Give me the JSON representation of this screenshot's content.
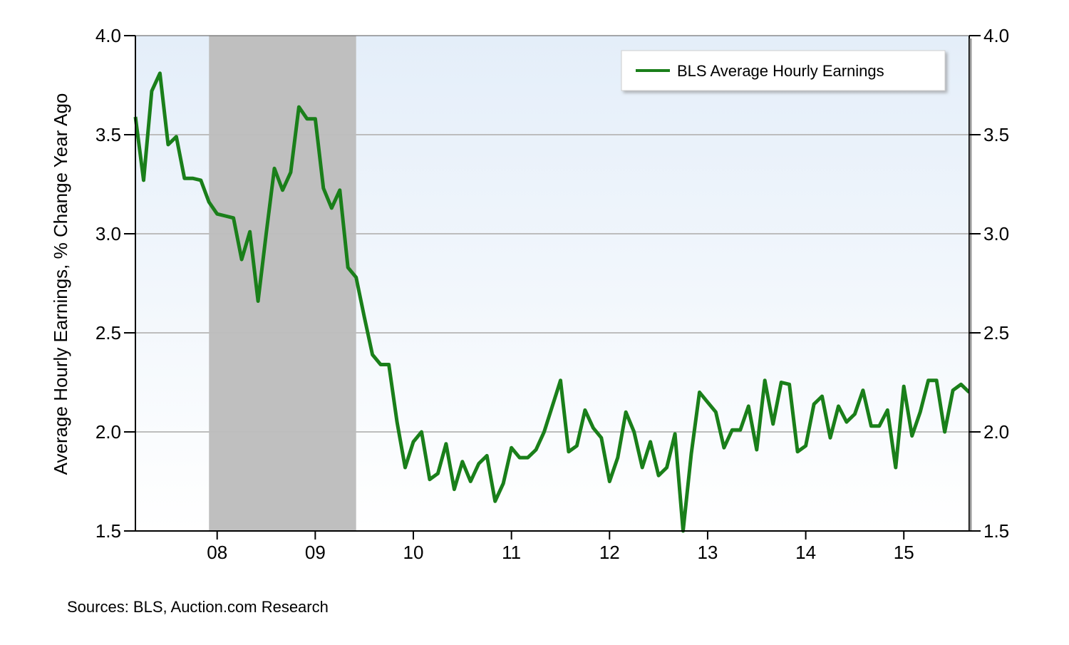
{
  "source_note": "Sources: BLS, Auction.com Research",
  "chart_data": {
    "type": "line",
    "title": "",
    "xlabel": "",
    "ylabel": "Average Hourly Earnings, % Change Year Ago",
    "ylim": [
      1.5,
      4.0
    ],
    "y_ticks": [
      1.5,
      2.0,
      2.5,
      3.0,
      3.5,
      4.0
    ],
    "y_tick_labels": [
      "1.5",
      "2.0",
      "2.5",
      "3.0",
      "3.5",
      "4.0"
    ],
    "secondary_y_axis": true,
    "x_range": [
      "2007-03",
      "2015-09"
    ],
    "x_ticks": [
      "2008-01",
      "2009-01",
      "2010-01",
      "2011-01",
      "2012-01",
      "2013-01",
      "2014-01",
      "2015-01"
    ],
    "x_tick_labels": [
      "08",
      "09",
      "10",
      "11",
      "12",
      "13",
      "14",
      "15"
    ],
    "grid": true,
    "legend_position": "top-right",
    "shaded_periods": [
      {
        "start": "2007-12",
        "end": "2009-06",
        "color": "#bfbfbf"
      }
    ],
    "colors": {
      "line": "#1a7f1a",
      "background_top": "#e4eef9",
      "background_bottom": "#ffffff",
      "gridline": "#bdbdbd"
    },
    "series": [
      {
        "name": "BLS Average Hourly Earnings",
        "x": [
          "2007-03",
          "2007-04",
          "2007-05",
          "2007-06",
          "2007-07",
          "2007-08",
          "2007-09",
          "2007-10",
          "2007-11",
          "2007-12",
          "2008-01",
          "2008-02",
          "2008-03",
          "2008-04",
          "2008-05",
          "2008-06",
          "2008-07",
          "2008-08",
          "2008-09",
          "2008-10",
          "2008-11",
          "2008-12",
          "2009-01",
          "2009-02",
          "2009-03",
          "2009-04",
          "2009-05",
          "2009-06",
          "2009-07",
          "2009-08",
          "2009-09",
          "2009-10",
          "2009-11",
          "2009-12",
          "2010-01",
          "2010-02",
          "2010-03",
          "2010-04",
          "2010-05",
          "2010-06",
          "2010-07",
          "2010-08",
          "2010-09",
          "2010-10",
          "2010-11",
          "2010-12",
          "2011-01",
          "2011-02",
          "2011-03",
          "2011-04",
          "2011-05",
          "2011-06",
          "2011-07",
          "2011-08",
          "2011-09",
          "2011-10",
          "2011-11",
          "2011-12",
          "2012-01",
          "2012-02",
          "2012-03",
          "2012-04",
          "2012-05",
          "2012-06",
          "2012-07",
          "2012-08",
          "2012-09",
          "2012-10",
          "2012-11",
          "2012-12",
          "2013-01",
          "2013-02",
          "2013-03",
          "2013-04",
          "2013-05",
          "2013-06",
          "2013-07",
          "2013-08",
          "2013-09",
          "2013-10",
          "2013-11",
          "2013-12",
          "2014-01",
          "2014-02",
          "2014-03",
          "2014-04",
          "2014-05",
          "2014-06",
          "2014-07",
          "2014-08",
          "2014-09",
          "2014-10",
          "2014-11",
          "2014-12",
          "2015-01",
          "2015-02",
          "2015-03",
          "2015-04",
          "2015-05",
          "2015-06",
          "2015-07",
          "2015-08",
          "2015-09"
        ],
        "values": [
          3.59,
          3.27,
          3.72,
          3.81,
          3.45,
          3.49,
          3.28,
          3.28,
          3.27,
          3.16,
          3.1,
          3.09,
          3.08,
          2.87,
          3.01,
          2.66,
          3.0,
          3.33,
          3.22,
          3.31,
          3.64,
          3.58,
          3.58,
          3.23,
          3.13,
          3.22,
          2.83,
          2.78,
          2.58,
          2.39,
          2.34,
          2.34,
          2.05,
          1.82,
          1.95,
          2.0,
          1.76,
          1.79,
          1.94,
          1.71,
          1.85,
          1.75,
          1.84,
          1.88,
          1.65,
          1.74,
          1.92,
          1.87,
          1.87,
          1.91,
          2.0,
          2.13,
          2.26,
          1.9,
          1.93,
          2.11,
          2.02,
          1.97,
          1.75,
          1.87,
          2.1,
          2.0,
          1.82,
          1.95,
          1.78,
          1.82,
          1.99,
          1.5,
          1.89,
          2.2,
          2.15,
          2.1,
          1.92,
          2.01,
          2.01,
          2.13,
          1.91,
          2.26,
          2.04,
          2.25,
          2.24,
          1.9,
          1.93,
          2.14,
          2.18,
          1.97,
          2.13,
          2.05,
          2.09,
          2.21,
          2.03,
          2.03,
          2.11,
          1.82,
          2.23,
          1.98,
          2.1,
          2.26,
          2.26,
          2.0,
          2.21,
          2.24,
          2.2
        ]
      }
    ]
  }
}
